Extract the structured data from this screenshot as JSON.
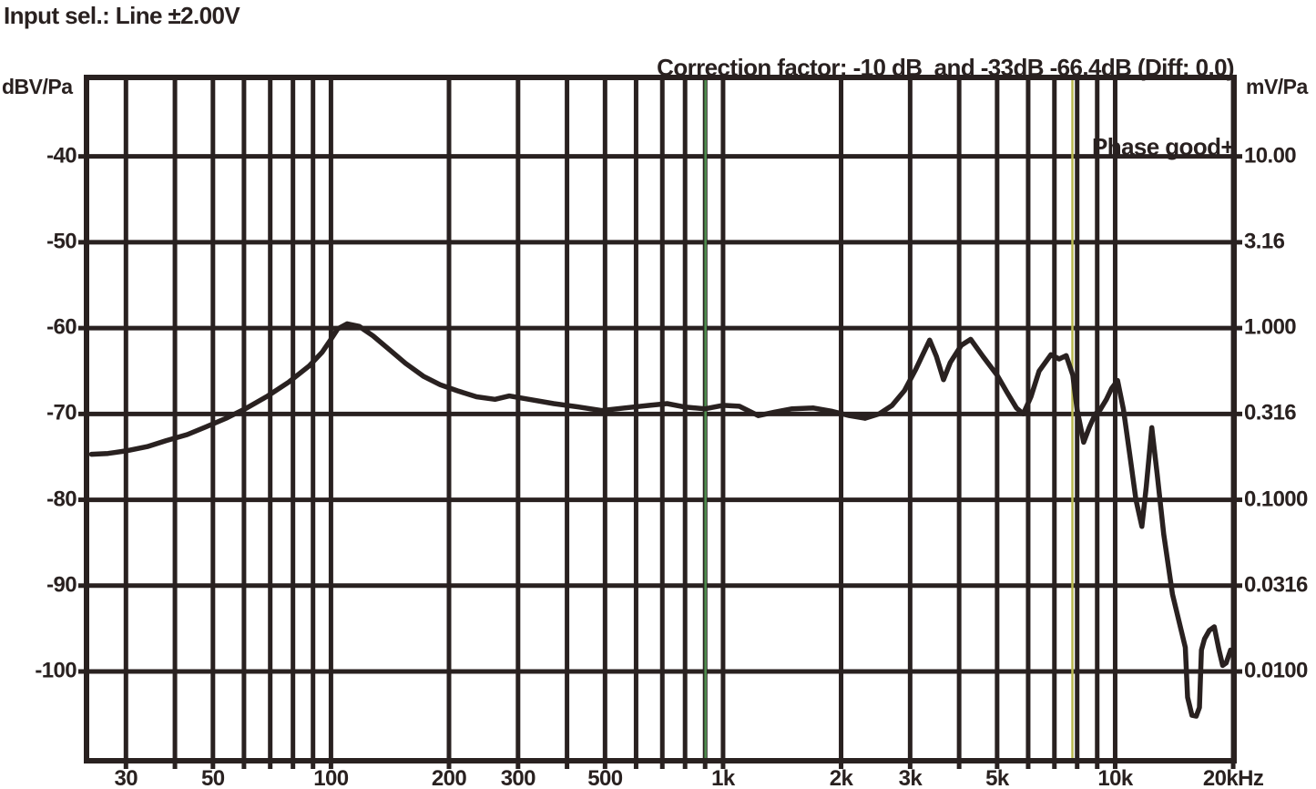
{
  "header": {
    "input_selection": "Input sel.: Line ±2.00V",
    "correction_factor": "Correction factor: -10 dB  and -33dB -66.4dB (Diff: 0.0)",
    "phase_status": "Phase good+"
  },
  "chart_data": {
    "type": "line",
    "title": "",
    "xlabel": "",
    "ylabel_left": "dBV/Pa",
    "ylabel_right": "mV/Pa",
    "grid": true,
    "x_axis": {
      "scale": "log",
      "min_hz": 23.8,
      "max_hz": 20100,
      "gridline_freqs_hz": [
        30,
        40,
        50,
        60,
        70,
        80,
        90,
        100,
        200,
        300,
        400,
        500,
        600,
        700,
        800,
        900,
        1000,
        2000,
        3000,
        4000,
        5000,
        6000,
        7000,
        8000,
        9000,
        10000,
        20000
      ],
      "tick_labels": [
        {
          "f": 30,
          "label": "30"
        },
        {
          "f": 50,
          "label": "50"
        },
        {
          "f": 100,
          "label": "100"
        },
        {
          "f": 200,
          "label": "200"
        },
        {
          "f": 300,
          "label": "300"
        },
        {
          "f": 500,
          "label": "500"
        },
        {
          "f": 1000,
          "label": "1k"
        },
        {
          "f": 2000,
          "label": "2k"
        },
        {
          "f": 3000,
          "label": "3k"
        },
        {
          "f": 5000,
          "label": "5k"
        },
        {
          "f": 10000,
          "label": "10k"
        },
        {
          "f": 20000,
          "label": "20kHz"
        }
      ]
    },
    "y_axis_left": {
      "label": "dBV/Pa",
      "top_db": -30.8,
      "bottom_db": -110.4,
      "gridline_dbs": [
        -40,
        -50,
        -60,
        -70,
        -80,
        -90,
        -100
      ],
      "tick_labels": [
        {
          "db": -40,
          "label": "-40"
        },
        {
          "db": -50,
          "label": "-50"
        },
        {
          "db": -60,
          "label": "-60"
        },
        {
          "db": -70,
          "label": "-70"
        },
        {
          "db": -80,
          "label": "-80"
        },
        {
          "db": -90,
          "label": "-90"
        },
        {
          "db": -100,
          "label": "-100"
        }
      ]
    },
    "y_axis_right": {
      "label": "mV/Pa",
      "tick_labels": [
        {
          "db": -40,
          "label": "10.00"
        },
        {
          "db": -50,
          "label": "3.16"
        },
        {
          "db": -60,
          "label": "1.000"
        },
        {
          "db": -70,
          "label": "0.316"
        },
        {
          "db": -80,
          "label": "0.1000"
        },
        {
          "db": -90,
          "label": "0.0316"
        },
        {
          "db": -100,
          "label": "0.0100"
        }
      ]
    },
    "cursors": [
      {
        "name": "cursor-green",
        "freq_hz": 902,
        "color": "#4f8f4f"
      },
      {
        "name": "cursor-yellow",
        "freq_hz": 7780,
        "color": "#b9b84e"
      }
    ],
    "colors": {
      "ink": "#292120",
      "background": "#ffffff"
    },
    "series": [
      {
        "name": "frequency-response",
        "freq_hz": [
          24.5,
          27,
          30,
          34,
          38,
          43,
          48,
          54,
          61,
          69,
          78,
          88,
          95,
          100,
          104,
          110,
          118,
          128,
          140,
          155,
          172,
          190,
          210,
          235,
          262,
          285,
          320,
          370,
          430,
          490,
          560,
          650,
          720,
          800,
          900,
          1000,
          1100,
          1230,
          1350,
          1500,
          1700,
          1900,
          2100,
          2300,
          2500,
          2700,
          2900,
          3100,
          3365,
          3500,
          3650,
          3800,
          4050,
          4280,
          4600,
          5000,
          5300,
          5600,
          5830,
          6100,
          6400,
          6860,
          7200,
          7500,
          7800,
          8000,
          8310,
          8600,
          8900,
          9160,
          9500,
          9800,
          10140,
          10500,
          10900,
          11300,
          11700,
          12000,
          12400,
          12800,
          13300,
          14000,
          14700,
          15100,
          15300,
          15700,
          16100,
          16400,
          16600,
          16900,
          17400,
          17900,
          18400,
          18800,
          19200,
          19700
        ],
        "db": [
          -74.7,
          -74.6,
          -74.3,
          -73.8,
          -73.1,
          -72.4,
          -71.5,
          -70.5,
          -69.3,
          -67.9,
          -66.3,
          -64.4,
          -62.8,
          -61.3,
          -60.1,
          -59.5,
          -59.8,
          -60.9,
          -62.4,
          -64.1,
          -65.6,
          -66.6,
          -67.3,
          -68.0,
          -68.3,
          -67.9,
          -68.3,
          -68.8,
          -69.2,
          -69.6,
          -69.3,
          -69.0,
          -68.8,
          -69.2,
          -69.4,
          -69.0,
          -69.1,
          -70.2,
          -69.8,
          -69.4,
          -69.3,
          -69.7,
          -70.2,
          -70.5,
          -70.0,
          -69.0,
          -67.3,
          -64.8,
          -61.4,
          -63.3,
          -66.0,
          -64.0,
          -62.0,
          -61.3,
          -63.3,
          -65.5,
          -67.5,
          -69.3,
          -70.0,
          -68.0,
          -65.0,
          -63.1,
          -63.6,
          -63.2,
          -65.5,
          -69.5,
          -73.3,
          -71.5,
          -70.0,
          -69.5,
          -68.3,
          -67.0,
          -66.1,
          -69.5,
          -74.8,
          -80.0,
          -83.1,
          -78.5,
          -71.6,
          -77.0,
          -84.0,
          -91.0,
          -95.0,
          -97.2,
          -103.0,
          -105.1,
          -105.2,
          -104.2,
          -97.5,
          -96.2,
          -95.2,
          -94.8,
          -97.5,
          -99.3,
          -99.0,
          -97.5
        ]
      }
    ]
  }
}
